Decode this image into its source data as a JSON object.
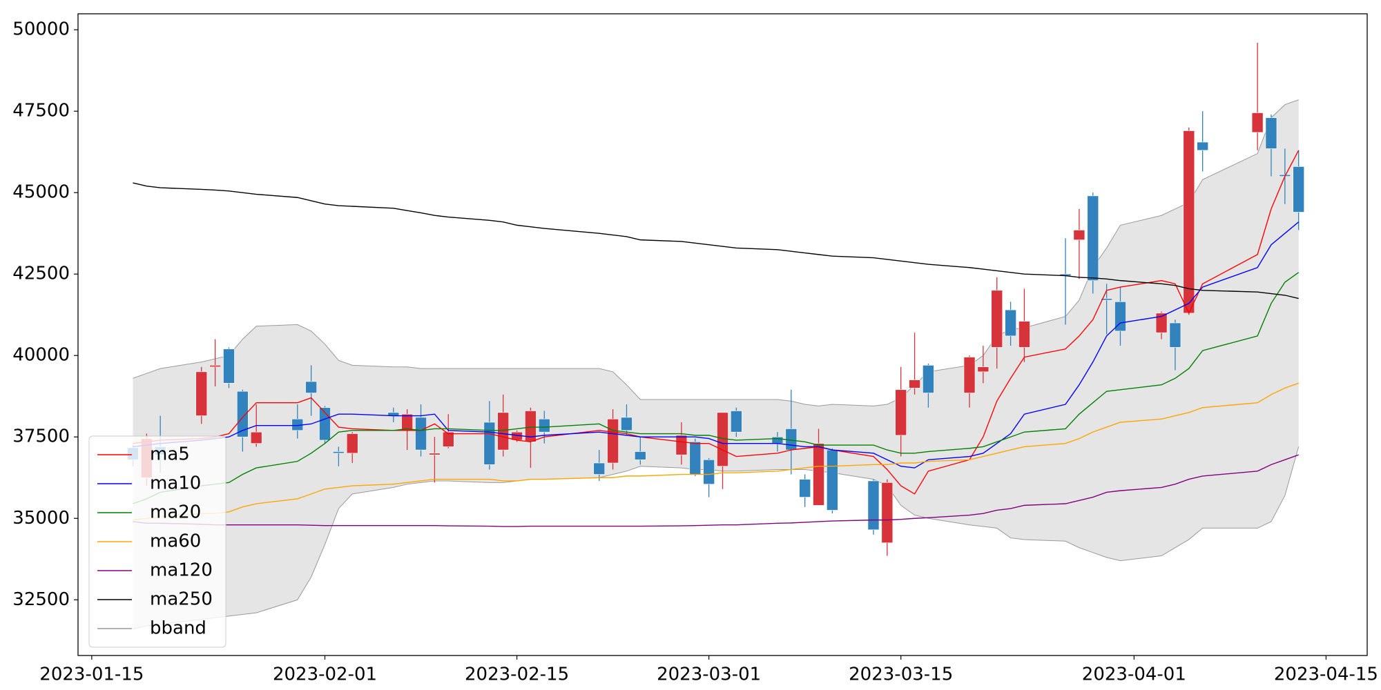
{
  "chart_data": {
    "type": "candlestick",
    "x": [
      "2023-01-18",
      "2023-01-19",
      "2023-01-20",
      "2023-01-23",
      "2023-01-24",
      "2023-01-25",
      "2023-01-26",
      "2023-01-27",
      "2023-01-30",
      "2023-01-31",
      "2023-02-01",
      "2023-02-02",
      "2023-02-03",
      "2023-02-06",
      "2023-02-07",
      "2023-02-08",
      "2023-02-09",
      "2023-02-10",
      "2023-02-13",
      "2023-02-14",
      "2023-02-15",
      "2023-02-16",
      "2023-02-17",
      "2023-02-21",
      "2023-02-22",
      "2023-02-23",
      "2023-02-24",
      "2023-02-27",
      "2023-02-28",
      "2023-03-01",
      "2023-03-02",
      "2023-03-03",
      "2023-03-06",
      "2023-03-07",
      "2023-03-08",
      "2023-03-09",
      "2023-03-10",
      "2023-03-13",
      "2023-03-14",
      "2023-03-15",
      "2023-03-16",
      "2023-03-17",
      "2023-03-20",
      "2023-03-21",
      "2023-03-22",
      "2023-03-23",
      "2023-03-24",
      "2023-03-27",
      "2023-03-28",
      "2023-03-29",
      "2023-03-30",
      "2023-03-31",
      "2023-04-03",
      "2023-04-04",
      "2023-04-05",
      "2023-04-06",
      "2023-04-10",
      "2023-04-11",
      "2023-04-12",
      "2023-04-13"
    ],
    "ohlc": {
      "open": [
        37170,
        36250,
        37200,
        38150,
        39650,
        40200,
        38900,
        37300,
        38050,
        39200,
        38400,
        37050,
        37000,
        38250,
        37700,
        38100,
        36950,
        37200,
        37950,
        37100,
        37400,
        37350,
        38050,
        36700,
        36700,
        38100,
        37050,
        36950,
        37350,
        36800,
        36600,
        38300,
        37500,
        37750,
        36200,
        35400,
        37100,
        36150,
        34250,
        37550,
        39000,
        39700,
        38850,
        39500,
        40250,
        41400,
        40250,
        42500,
        43550,
        44900,
        41750,
        41650,
        40700,
        41000,
        41300,
        46550,
        46850,
        47300,
        45550,
        45800
      ],
      "high": [
        37250,
        37600,
        38150,
        39650,
        40500,
        40250,
        38950,
        38500,
        38500,
        39700,
        38450,
        37200,
        37650,
        38400,
        38350,
        38500,
        37500,
        38200,
        38600,
        38800,
        37700,
        38400,
        38300,
        37100,
        38350,
        38500,
        37500,
        37950,
        37450,
        36850,
        38250,
        38400,
        37650,
        38950,
        36350,
        37750,
        37150,
        36200,
        36200,
        39650,
        40700,
        39750,
        40000,
        40300,
        42400,
        41650,
        42050,
        43600,
        44500,
        45000,
        42200,
        42100,
        41350,
        41100,
        47000,
        47500,
        49600,
        47400,
        46350,
        46300
      ],
      "low": [
        36600,
        36000,
        36400,
        37900,
        39050,
        39000,
        37050,
        37200,
        37450,
        38150,
        37300,
        36600,
        36700,
        37950,
        37100,
        36900,
        36100,
        37150,
        36500,
        36900,
        37350,
        36550,
        37300,
        36150,
        36500,
        37550,
        36650,
        36650,
        36300,
        35650,
        35900,
        37500,
        37050,
        36350,
        35350,
        35400,
        35150,
        34500,
        33850,
        36900,
        38800,
        38400,
        38400,
        39150,
        39600,
        40300,
        39800,
        40950,
        42350,
        41900,
        40650,
        40300,
        40500,
        39550,
        41250,
        45650,
        46300,
        45500,
        44650,
        43850
      ],
      "close": [
        36800,
        37450,
        36950,
        39500,
        39700,
        39150,
        37500,
        37650,
        37700,
        38850,
        37400,
        37000,
        37600,
        38150,
        38200,
        37100,
        37000,
        37650,
        36650,
        38250,
        37650,
        38300,
        37650,
        36350,
        38050,
        37700,
        36800,
        37550,
        36350,
        36050,
        38250,
        37650,
        37300,
        37100,
        35650,
        37300,
        35250,
        34650,
        36100,
        38950,
        39250,
        38850,
        39950,
        39650,
        42000,
        40600,
        41050,
        42450,
        43850,
        42300,
        41700,
        40750,
        41300,
        40250,
        46900,
        46300,
        47450,
        46350,
        45500,
        44400
      ]
    },
    "up_color": "#d6333a",
    "down_color": "#3182bd",
    "lines": [
      {
        "name": "ma5",
        "color": "#ff0000",
        "values": [
          37300,
          37350,
          37400,
          37450,
          37500,
          37600,
          38100,
          38550,
          38550,
          38700,
          38250,
          37800,
          37750,
          37700,
          37700,
          37700,
          37900,
          37600,
          37600,
          37500,
          37400,
          37350,
          37500,
          37700,
          37650,
          37600,
          37500,
          37350,
          37300,
          37300,
          37100,
          36900,
          37000,
          37100,
          37150,
          37200,
          37100,
          36900,
          36500,
          36000,
          35750,
          36450,
          36800,
          37500,
          38600,
          39300,
          39950,
          40200,
          40600,
          41100,
          42000,
          42100,
          42300,
          42200,
          41300,
          42200,
          43100,
          44500,
          45500,
          46300
        ]
      },
      {
        "name": "ma10",
        "color": "#0000ff",
        "values": [
          37200,
          37250,
          37300,
          37400,
          37450,
          37500,
          37700,
          37850,
          37850,
          37900,
          38050,
          38200,
          38200,
          38150,
          38150,
          38150,
          38200,
          37700,
          37650,
          37600,
          37550,
          37500,
          37550,
          37650,
          37600,
          37550,
          37500,
          37500,
          37500,
          37450,
          37300,
          37300,
          37300,
          37250,
          37200,
          37200,
          37100,
          37000,
          36800,
          36600,
          36550,
          36800,
          36900,
          37000,
          37300,
          37600,
          38200,
          38500,
          39100,
          39800,
          40600,
          41000,
          41200,
          41400,
          41600,
          42100,
          42700,
          43400,
          43750,
          44100
        ]
      },
      {
        "name": "ma20",
        "color": "#008000",
        "values": [
          35450,
          35600,
          35800,
          36000,
          36050,
          36100,
          36350,
          36550,
          36750,
          37000,
          37300,
          37650,
          37700,
          37700,
          37750,
          37700,
          37750,
          37750,
          37700,
          37700,
          37750,
          37800,
          37800,
          37900,
          37700,
          37650,
          37600,
          37600,
          37550,
          37550,
          37450,
          37400,
          37450,
          37400,
          37350,
          37250,
          37250,
          37250,
          37100,
          37000,
          37000,
          37050,
          37150,
          37200,
          37350,
          37500,
          37650,
          37750,
          38200,
          38550,
          38900,
          38950,
          39100,
          39300,
          39600,
          40150,
          40600,
          41600,
          42250,
          42550
        ]
      },
      {
        "name": "ma60",
        "color": "#ffa500",
        "values": [
          34950,
          35000,
          35050,
          35150,
          35150,
          35200,
          35350,
          35450,
          35600,
          35750,
          35900,
          35950,
          36000,
          36050,
          36100,
          36150,
          36200,
          36200,
          36200,
          36150,
          36150,
          36200,
          36200,
          36250,
          36250,
          36300,
          36300,
          36350,
          36350,
          36350,
          36400,
          36400,
          36450,
          36500,
          36550,
          36600,
          36600,
          36650,
          36650,
          36700,
          36700,
          36750,
          36800,
          36900,
          37000,
          37100,
          37200,
          37300,
          37450,
          37650,
          37800,
          37950,
          38050,
          38150,
          38250,
          38400,
          38550,
          38800,
          39000,
          39150
        ]
      },
      {
        "name": "ma120",
        "color": "#800080",
        "values": [
          34900,
          34850,
          34850,
          34820,
          34800,
          34800,
          34800,
          34800,
          34800,
          34790,
          34780,
          34780,
          34780,
          34780,
          34780,
          34780,
          34780,
          34770,
          34760,
          34750,
          34750,
          34760,
          34760,
          34760,
          34760,
          34760,
          34760,
          34770,
          34780,
          34790,
          34800,
          34800,
          34850,
          34860,
          34880,
          34900,
          34920,
          34950,
          34950,
          34970,
          35000,
          35020,
          35100,
          35150,
          35250,
          35300,
          35400,
          35450,
          35550,
          35650,
          35800,
          35850,
          35950,
          36050,
          36200,
          36300,
          36450,
          36650,
          36800,
          36950
        ]
      },
      {
        "name": "ma250",
        "color": "#000000",
        "values": [
          45300,
          45200,
          45150,
          45100,
          45080,
          45050,
          45000,
          44950,
          44850,
          44750,
          44650,
          44600,
          44580,
          44520,
          44450,
          44380,
          44300,
          44250,
          44150,
          44100,
          44000,
          43950,
          43900,
          43750,
          43700,
          43650,
          43550,
          43500,
          43450,
          43400,
          43350,
          43300,
          43250,
          43200,
          43150,
          43100,
          43050,
          43000,
          42950,
          42900,
          42850,
          42800,
          42700,
          42650,
          42600,
          42550,
          42500,
          42450,
          42400,
          42380,
          42350,
          42300,
          42200,
          42150,
          42050,
          42000,
          41950,
          41900,
          41850,
          41750
        ]
      }
    ],
    "bband": {
      "name": "bband",
      "color": "#999999",
      "fill": "#e5e5e5",
      "upper": [
        39300,
        39450,
        39600,
        39800,
        39900,
        40000,
        40500,
        40900,
        40950,
        40750,
        40350,
        39850,
        39700,
        39650,
        39650,
        39600,
        39600,
        39600,
        39600,
        39600,
        39600,
        39600,
        39600,
        39600,
        39500,
        39100,
        38650,
        38650,
        38650,
        38650,
        38650,
        38650,
        38650,
        38600,
        38500,
        38450,
        38500,
        38450,
        38500,
        38700,
        39100,
        39500,
        39700,
        40000,
        40600,
        40800,
        40850,
        41200,
        41700,
        42700,
        43300,
        44000,
        44300,
        44500,
        44700,
        45400,
        46200,
        47300,
        47700,
        47850
      ],
      "lower": [
        31600,
        31700,
        31750,
        31900,
        31950,
        32000,
        32050,
        32100,
        32500,
        33200,
        34200,
        35300,
        35750,
        35950,
        36050,
        36100,
        36150,
        36150,
        36100,
        36100,
        36150,
        36200,
        36200,
        36250,
        36350,
        36450,
        36600,
        36550,
        36500,
        36500,
        36450,
        36450,
        36500,
        36500,
        36500,
        36450,
        36400,
        36200,
        36000,
        35400,
        35100,
        35000,
        34800,
        34750,
        34700,
        34400,
        34350,
        34300,
        34100,
        33950,
        33800,
        33700,
        33850,
        34100,
        34350,
        34700,
        34700,
        34900,
        35700,
        37200
      ]
    },
    "xlim": [
      "2023-01-14",
      "2023-04-18"
    ],
    "xticks": [
      "2023-01-15",
      "2023-02-01",
      "2023-02-15",
      "2023-03-01",
      "2023-03-15",
      "2023-04-01",
      "2023-04-15"
    ],
    "ylim": [
      30790,
      50490
    ],
    "yticks": [
      32500,
      35000,
      37500,
      40000,
      42500,
      45000,
      47500,
      50000
    ],
    "legend": "lower left"
  }
}
